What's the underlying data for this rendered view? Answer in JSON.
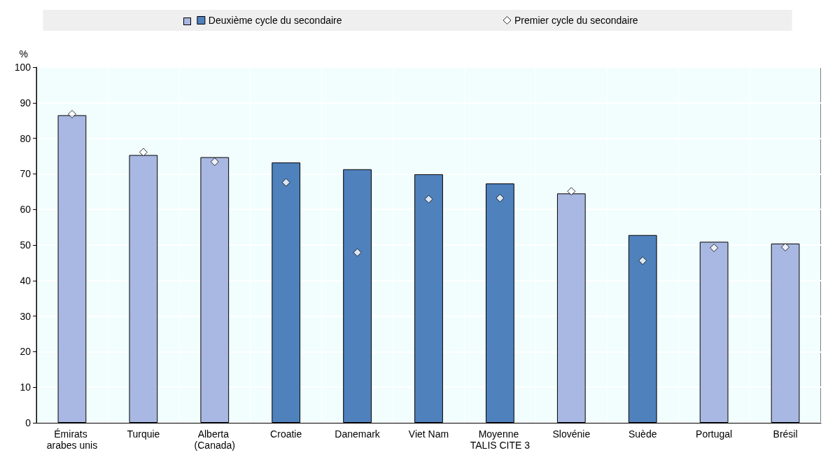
{
  "chart_data": {
    "type": "bar",
    "ylabel": "%",
    "categories": [
      "Émirats arabes unis",
      "Turquie",
      "Alberta (Canada)",
      "Croatie",
      "Danemark",
      "Viet Nam",
      "Moyenne TALIS CITE 3",
      "Slovénie",
      "Suède",
      "Portugal",
      "Brésil"
    ],
    "series": [
      {
        "name": "Deuxième cycle du secondaire",
        "color": "#4f81bd",
        "colors": [
          "#a8b8e2",
          "#a8b8e2",
          "#a8b8e2",
          "#4f81bd",
          "#4f81bd",
          "#4f81bd",
          "#4f81bd",
          "#a8b8e2",
          "#4f81bd",
          "#a8b8e2",
          "#a8b8e2"
        ],
        "values": [
          86.5,
          75.3,
          74.7,
          73.2,
          71.3,
          69.9,
          67.3,
          64.5,
          52.8,
          50.9,
          50.4
        ]
      },
      {
        "name": "Premier cycle du secondaire",
        "type": "scatter",
        "marker": "diamond",
        "color": "#ffffff",
        "values": [
          86.8,
          76.1,
          73.4,
          67.6,
          47.9,
          62.9,
          63.2,
          65.1,
          45.6,
          49.2,
          49.4
        ]
      }
    ],
    "ylim": [
      0,
      100
    ],
    "yticks": [
      0,
      10,
      20,
      30,
      40,
      50,
      60,
      70,
      80,
      90,
      100
    ],
    "grid": true,
    "legend": "top"
  }
}
